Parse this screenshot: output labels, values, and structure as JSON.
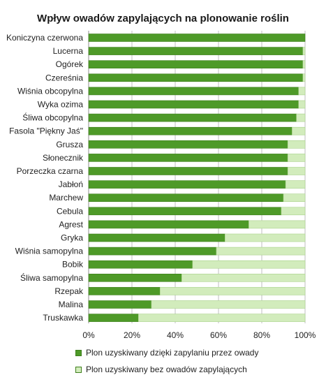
{
  "chart_data": {
    "type": "bar",
    "orientation": "horizontal",
    "stacked": true,
    "title": "Wpływ owadów zapylających na plonowanie roślin",
    "xlim": [
      0,
      100
    ],
    "xticks": [
      "0%",
      "20%",
      "40%",
      "60%",
      "80%",
      "100%"
    ],
    "grid": true,
    "legend_position": "bottom",
    "categories": [
      "Koniczyna czerwona",
      "Lucerna",
      "Ogórek",
      "Czereśnia",
      "Wiśnia obcopylna",
      "Wyka ozima",
      "Śliwa obcopylna",
      "Fasola \"Piękny Jaś\"",
      "Grusza",
      "Słonecznik",
      "Porzeczka czarna",
      "Jabłoń",
      "Marchew",
      "Cebula",
      "Agrest",
      "Gryka",
      "Wiśnia samopylna",
      "Bobik",
      "Śliwa samopylna",
      "Rzepak",
      "Malina",
      "Truskawka"
    ],
    "series": [
      {
        "name": "Plon uzyskiwany dzięki zapylaniu przez owady",
        "color": "#4e9a28",
        "values": [
          100,
          99,
          99,
          99,
          97,
          97,
          96,
          94,
          92,
          92,
          92,
          91,
          90,
          89,
          74,
          63,
          59,
          48,
          43,
          33,
          29,
          23
        ]
      },
      {
        "name": "Plon uzyskiwany bez owadów zapylających",
        "color": "#d2ecbc",
        "values": [
          0,
          1,
          1,
          1,
          3,
          3,
          4,
          6,
          8,
          8,
          8,
          9,
          10,
          11,
          26,
          37,
          41,
          52,
          57,
          67,
          71,
          77
        ]
      }
    ]
  }
}
